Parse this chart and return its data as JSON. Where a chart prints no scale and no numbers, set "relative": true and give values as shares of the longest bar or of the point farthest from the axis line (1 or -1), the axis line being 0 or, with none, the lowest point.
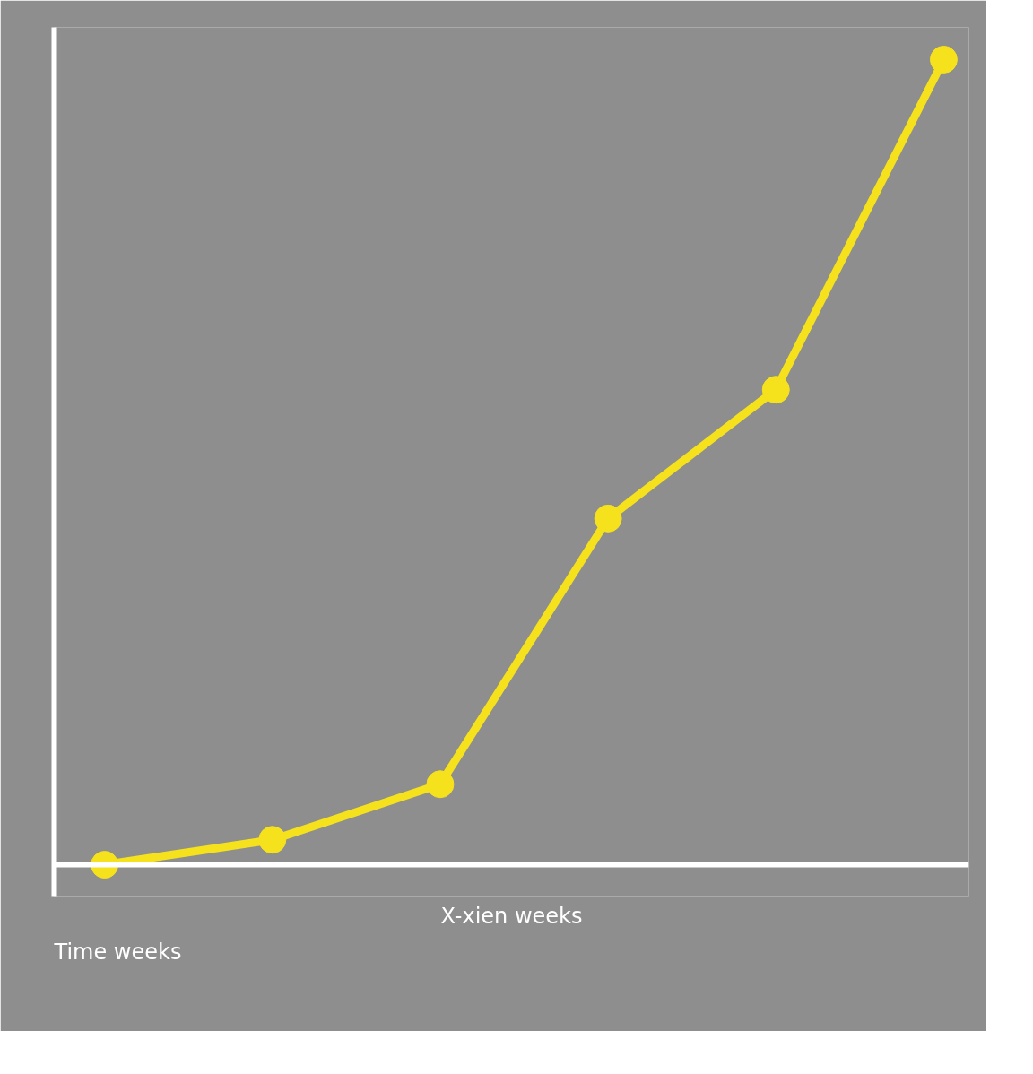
{
  "chart_data": {
    "type": "line",
    "relative": true,
    "xlabel": "X-xien weeks",
    "annotations": [
      "Time weeks"
    ],
    "categories": [
      null,
      null,
      null,
      null,
      null,
      null
    ],
    "series": [
      {
        "color": "#f5e11c",
        "values": [
          0,
          0.031,
          0.1,
          0.43,
          0.59,
          1
        ]
      }
    ],
    "marker": "circle",
    "line_style": "solid"
  }
}
